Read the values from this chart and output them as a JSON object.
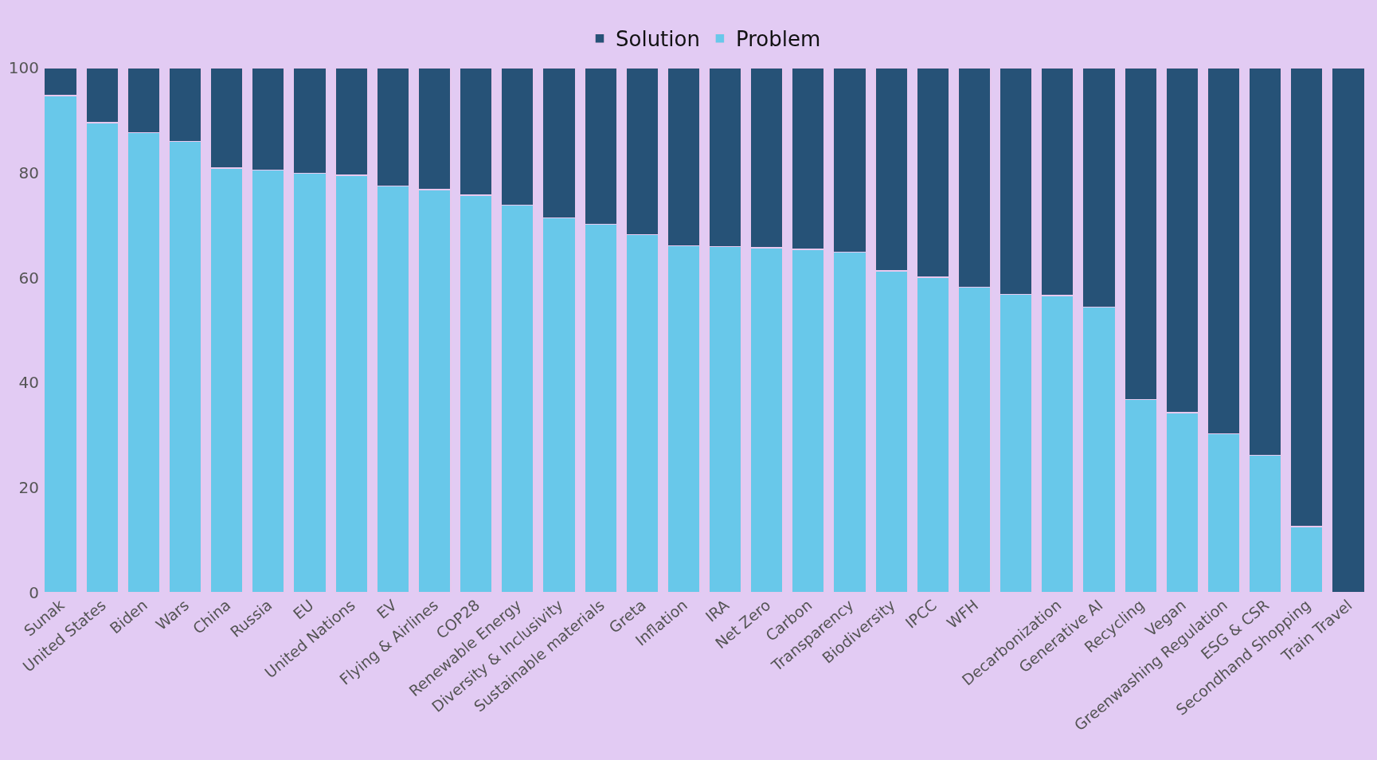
{
  "chart_data": {
    "type": "bar",
    "stacked": true,
    "legend": "top",
    "grid": false,
    "categories": [
      "Sunak",
      "United States",
      "Biden",
      "Wars",
      "China",
      "Russia",
      "EU",
      "United Nations",
      "EV",
      "Flying & Airlines",
      "COP28",
      "Renewable Energy",
      "Diversity & Inclusivity",
      "Sustainable materials",
      "Greta",
      "Inflation",
      "IRA",
      "Net Zero",
      "Carbon",
      "Transparency",
      "Biodiversity",
      "IPCC",
      "WFH",
      null,
      "Decarbonization",
      "Generative AI",
      "Recycling",
      "Vegan",
      "Greenwashing Regulation",
      "ESG & CSR",
      "Secondhand Shopping",
      "Train Travel"
    ],
    "series": [
      {
        "name": "Problem",
        "color": "#68c8ea",
        "values": [
          94.7,
          89.5,
          87.6,
          86,
          80.9,
          80.5,
          79.9,
          79.5,
          77.5,
          76.8,
          75.7,
          73.8,
          71.4,
          70.2,
          68.2,
          66.1,
          65.9,
          65.7,
          65.4,
          64.9,
          61.3,
          60.1,
          58.2,
          56.8,
          56.6,
          54.4,
          36.8,
          34.3,
          30.3,
          26.2,
          12.6,
          0
        ]
      },
      {
        "name": "Solution",
        "color": "#265277",
        "values": [
          5.3,
          10.5,
          12.4,
          14,
          19.1,
          19.5,
          20.1,
          20.5,
          22.5,
          23.2,
          24.3,
          26.2,
          28.6,
          29.8,
          31.8,
          33.9,
          34.1,
          34.3,
          34.6,
          35.1,
          38.7,
          39.9,
          41.8,
          43.2,
          43.4,
          45.6,
          63.2,
          65.7,
          69.7,
          73.8,
          87.4,
          100
        ]
      }
    ],
    "ylim": [
      0,
      100
    ],
    "yticks": [
      0,
      20,
      40,
      60,
      80,
      100
    ]
  }
}
